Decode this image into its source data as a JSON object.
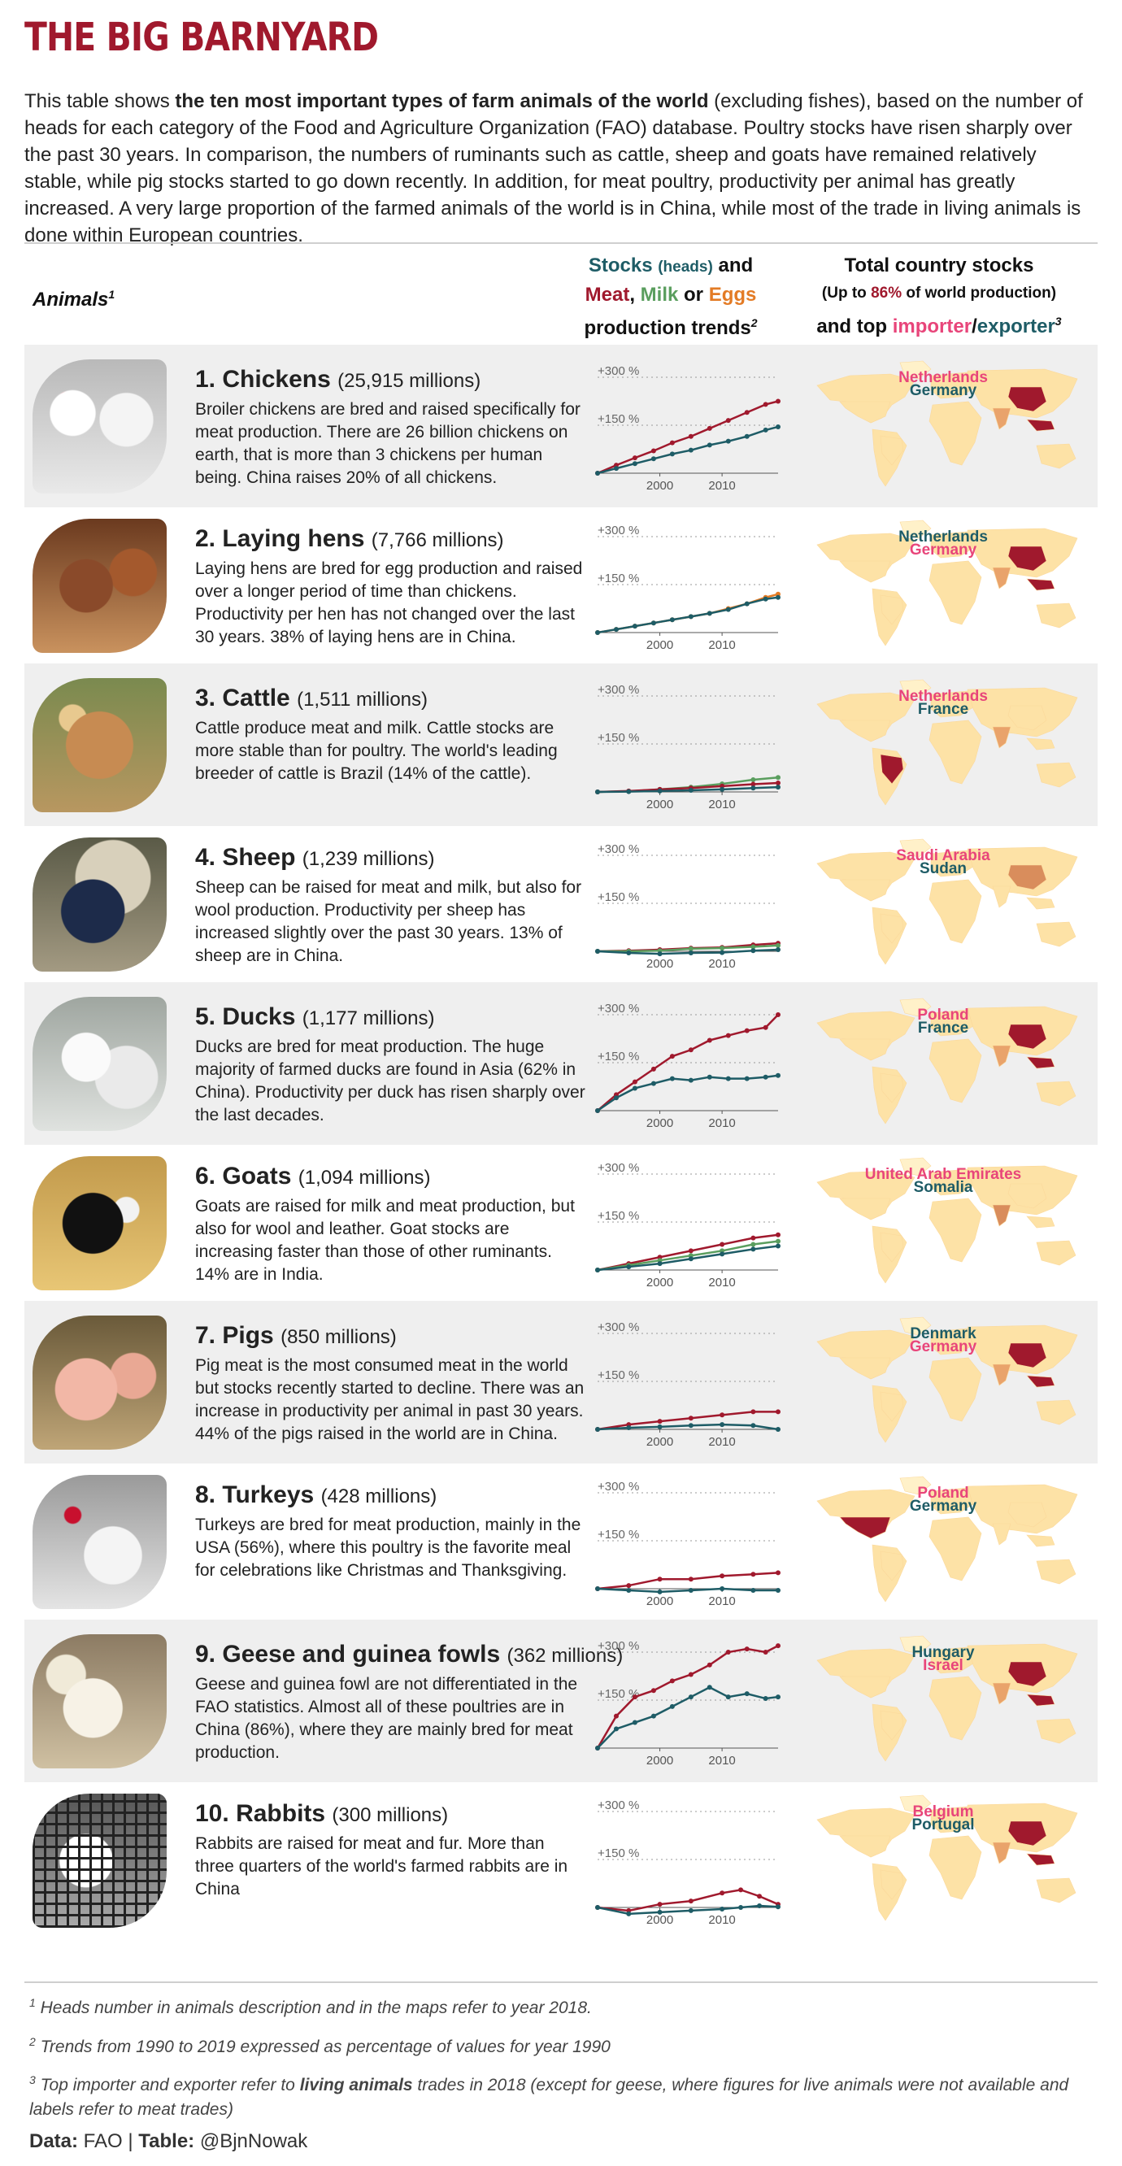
{
  "title": "THE BIG BARNYARD",
  "intro": {
    "p1": "This table shows ",
    "bold": "the ten most important types of farm animals of the world",
    "p2": " (excluding fishes), based on the number of heads for each category of the Food and Agriculture Organization (FAO) database. Poultry stocks have risen sharply over the past 30 years. In comparison, the numbers of ruminants such as cattle, sheep and goats have remained relatively stable, while pig stocks started to go down recently. In addition, for meat poultry, productivity per animal has greatly increased. A very large proportion of the farmed animals of the world is in China, while most of the trade in living animals is done within European countries."
  },
  "headers": {
    "animals": "Animals",
    "animals_sup": "1",
    "trend_stocks": "Stocks",
    "trend_heads": "(heads)",
    "trend_and": "and",
    "trend_meat": "Meat",
    "trend_comma": ",",
    "trend_milk": "Milk",
    "trend_or": "or",
    "trend_eggs": "Eggs",
    "trend_line3": "production trends",
    "trend_sup": "2",
    "map_line1": "Total country stocks",
    "map_line2a": "(Up to ",
    "map_pct": "86%",
    "map_line2b": " of world production)",
    "map_line3a": "and top ",
    "map_importer": "importer",
    "map_slash": "/",
    "map_exporter": "exporter",
    "map_sup": "3"
  },
  "colors": {
    "stocks": "#1e5c66",
    "meat": "#a0192d",
    "milk": "#5a9e5e",
    "eggs": "#e37b25",
    "importer": "#e8457a",
    "exporter": "#1e5c66",
    "map_base": "#fde2a6",
    "map_mid": "#d98d5c",
    "map_high": "#a0192d",
    "title": "#a0192d"
  },
  "axis_labels": {
    "y300": "+300 %",
    "y150": "+150 %",
    "x2000": "2000",
    "x2010": "2010"
  },
  "animals": [
    {
      "rank": "1.",
      "name": "Chickens",
      "count": "(25,915 millions)",
      "desc": "Broiler chickens are bred and raised specifically for meat production. There are 26 billion chickens on earth, that is more than 3 chickens per human being. China raises 20% of all chickens.",
      "importer": "Netherlands",
      "exporter": "Germany",
      "top_region": "china"
    },
    {
      "rank": "2.",
      "name": "Laying hens",
      "count": "(7,766 millions)",
      "desc": "Laying hens are bred for egg production and raised over a longer period of time than chickens. Productivity per hen has not changed over the last 30 years. 38% of laying hens are in China.",
      "importer": "Germany",
      "exporter": "Netherlands",
      "top_region": "china"
    },
    {
      "rank": "3.",
      "name": "Cattle",
      "count": "(1,511 millions)",
      "desc": "Cattle produce meat and milk. Cattle stocks are more stable than for poultry. The world's leading breeder of cattle is Brazil (14% of the cattle).",
      "importer": "Netherlands",
      "exporter": "France",
      "top_region": "brazil"
    },
    {
      "rank": "4.",
      "name": "Sheep",
      "count": "(1,239 millions)",
      "desc": "Sheep can be raised for meat and milk, but also for wool production. Productivity per sheep has increased slightly over the past 30 years. 13% of sheep are in China.",
      "importer": "Saudi Arabia",
      "exporter": "Sudan",
      "top_region": "china-light"
    },
    {
      "rank": "5.",
      "name": "Ducks",
      "count": "(1,177 millions)",
      "desc": "Ducks are bred for meat production. The huge majority of farmed ducks are found in Asia (62% in China). Productivity per duck has risen sharply over the last decades.",
      "importer": "Poland",
      "exporter": "France",
      "top_region": "china"
    },
    {
      "rank": "6.",
      "name": "Goats",
      "count": "(1,094 millions)",
      "desc": "Goats are raised for milk and meat production, but also for wool and leather. Goat stocks are increasing faster than those of other ruminants. 14% are in India.",
      "importer": "United Arab Emirates",
      "exporter": "Somalia",
      "top_region": "india-light"
    },
    {
      "rank": "7.",
      "name": "Pigs",
      "count": "(850 millions)",
      "desc": "Pig meat is the most consumed meat in the world but stocks recently started to decline. There was an increase in productivity per animal in past 30 years. 44% of the pigs raised in the world are in China.",
      "importer": "Germany",
      "exporter": "Denmark",
      "top_region": "china"
    },
    {
      "rank": "8.",
      "name": "Turkeys",
      "count": "(428 millions)",
      "desc": "Turkeys are bred for meat production, mainly in the USA (56%), where this poultry is the favorite meal for celebrations like Christmas and Thanksgiving.",
      "importer": "Poland",
      "exporter": "Germany",
      "top_region": "usa"
    },
    {
      "rank": "9.",
      "name": "Geese and guinea fowls",
      "count": "(362 millions)",
      "desc": "Geese and guinea fowl are not differentiated in the FAO statistics. Almost all of these poultries are in China (86%), where they are mainly bred for meat production.",
      "importer": "Israel",
      "exporter": "Hungary",
      "top_region": "china"
    },
    {
      "rank": "10.",
      "name": "Rabbits",
      "count": "(300 millions)",
      "desc": "Rabbits are raised for meat and fur. More than three quarters of the world's farmed rabbits are in China",
      "importer": "Belgium",
      "exporter": "Portugal",
      "top_region": "china"
    }
  ],
  "chart_data": [
    {
      "type": "line",
      "title": "Chickens",
      "ylim": [
        -20,
        320
      ],
      "series": [
        {
          "name": "Meat",
          "color": "#a0192d",
          "x": [
            1990,
            1993,
            1996,
            1999,
            2002,
            2005,
            2008,
            2011,
            2014,
            2017,
            2019
          ],
          "values": [
            0,
            25,
            48,
            70,
            95,
            115,
            140,
            165,
            190,
            215,
            225
          ]
        },
        {
          "name": "Stocks",
          "color": "#1e5c66",
          "x": [
            1990,
            1993,
            1996,
            1999,
            2002,
            2005,
            2008,
            2011,
            2014,
            2017,
            2019
          ],
          "values": [
            0,
            15,
            30,
            45,
            60,
            72,
            88,
            100,
            115,
            135,
            145
          ]
        }
      ]
    },
    {
      "type": "line",
      "title": "Laying hens",
      "ylim": [
        -20,
        320
      ],
      "series": [
        {
          "name": "Eggs",
          "color": "#e37b25",
          "x": [
            1990,
            1993,
            1996,
            1999,
            2002,
            2005,
            2008,
            2011,
            2014,
            2017,
            2019
          ],
          "values": [
            0,
            10,
            20,
            30,
            40,
            50,
            60,
            75,
            90,
            110,
            120
          ]
        },
        {
          "name": "Stocks",
          "color": "#1e5c66",
          "x": [
            1990,
            1993,
            1996,
            1999,
            2002,
            2005,
            2008,
            2011,
            2014,
            2017,
            2019
          ],
          "values": [
            0,
            10,
            20,
            30,
            40,
            50,
            60,
            72,
            90,
            105,
            110
          ]
        }
      ]
    },
    {
      "type": "line",
      "title": "Cattle",
      "ylim": [
        -20,
        320
      ],
      "series": [
        {
          "name": "Milk",
          "color": "#5a9e5e",
          "x": [
            1990,
            1995,
            2000,
            2005,
            2010,
            2015,
            2019
          ],
          "values": [
            0,
            2,
            8,
            15,
            25,
            38,
            45
          ]
        },
        {
          "name": "Meat",
          "color": "#a0192d",
          "x": [
            1990,
            1995,
            2000,
            2005,
            2010,
            2015,
            2019
          ],
          "values": [
            0,
            3,
            8,
            12,
            18,
            24,
            28
          ]
        },
        {
          "name": "Stocks",
          "color": "#1e5c66",
          "x": [
            1990,
            1995,
            2000,
            2005,
            2010,
            2015,
            2019
          ],
          "values": [
            0,
            1,
            3,
            5,
            8,
            12,
            15
          ]
        }
      ]
    },
    {
      "type": "line",
      "title": "Sheep",
      "ylim": [
        -20,
        320
      ],
      "series": [
        {
          "name": "Meat",
          "color": "#a0192d",
          "x": [
            1990,
            1995,
            2000,
            2005,
            2010,
            2015,
            2019
          ],
          "values": [
            0,
            2,
            5,
            10,
            12,
            20,
            25
          ]
        },
        {
          "name": "Milk",
          "color": "#5a9e5e",
          "x": [
            1990,
            1995,
            2000,
            2005,
            2010,
            2015,
            2019
          ],
          "values": [
            0,
            0,
            2,
            8,
            10,
            14,
            18
          ]
        },
        {
          "name": "Stocks",
          "color": "#1e5c66",
          "x": [
            1990,
            1995,
            2000,
            2005,
            2010,
            2015,
            2019
          ],
          "values": [
            0,
            -5,
            -8,
            -5,
            -4,
            2,
            5
          ]
        }
      ]
    },
    {
      "type": "line",
      "title": "Ducks",
      "ylim": [
        -20,
        320
      ],
      "series": [
        {
          "name": "Meat",
          "color": "#a0192d",
          "x": [
            1990,
            1993,
            1996,
            1999,
            2002,
            2005,
            2008,
            2011,
            2014,
            2017,
            2019
          ],
          "values": [
            0,
            50,
            90,
            130,
            170,
            190,
            220,
            235,
            250,
            260,
            300
          ]
        },
        {
          "name": "Stocks",
          "color": "#1e5c66",
          "x": [
            1990,
            1993,
            1996,
            1999,
            2002,
            2005,
            2008,
            2011,
            2014,
            2017,
            2019
          ],
          "values": [
            0,
            40,
            70,
            85,
            100,
            95,
            105,
            100,
            100,
            105,
            110
          ]
        }
      ]
    },
    {
      "type": "line",
      "title": "Goats",
      "ylim": [
        -20,
        320
      ],
      "series": [
        {
          "name": "Meat",
          "color": "#a0192d",
          "x": [
            1990,
            1995,
            2000,
            2005,
            2010,
            2015,
            2019
          ],
          "values": [
            0,
            20,
            40,
            60,
            80,
            100,
            110
          ]
        },
        {
          "name": "Milk",
          "color": "#5a9e5e",
          "x": [
            1990,
            1995,
            2000,
            2005,
            2010,
            2015,
            2019
          ],
          "values": [
            0,
            15,
            30,
            45,
            60,
            80,
            90
          ]
        },
        {
          "name": "Stocks",
          "color": "#1e5c66",
          "x": [
            1990,
            1995,
            2000,
            2005,
            2010,
            2015,
            2019
          ],
          "values": [
            0,
            10,
            20,
            35,
            50,
            65,
            75
          ]
        }
      ]
    },
    {
      "type": "line",
      "title": "Pigs",
      "ylim": [
        -20,
        320
      ],
      "series": [
        {
          "name": "Meat",
          "color": "#a0192d",
          "x": [
            1990,
            1995,
            2000,
            2005,
            2010,
            2015,
            2019
          ],
          "values": [
            0,
            15,
            25,
            35,
            45,
            55,
            55
          ]
        },
        {
          "name": "Stocks",
          "color": "#1e5c66",
          "x": [
            1990,
            1995,
            2000,
            2005,
            2010,
            2015,
            2019
          ],
          "values": [
            0,
            5,
            8,
            12,
            15,
            12,
            0
          ]
        }
      ]
    },
    {
      "type": "line",
      "title": "Turkeys",
      "ylim": [
        -20,
        320
      ],
      "series": [
        {
          "name": "Meat",
          "color": "#a0192d",
          "x": [
            1990,
            1995,
            2000,
            2005,
            2010,
            2015,
            2019
          ],
          "values": [
            0,
            10,
            30,
            30,
            40,
            45,
            50
          ]
        },
        {
          "name": "Stocks",
          "color": "#1e5c66",
          "x": [
            1990,
            1995,
            2000,
            2005,
            2010,
            2015,
            2019
          ],
          "values": [
            0,
            -5,
            -10,
            -5,
            0,
            -5,
            -5
          ]
        }
      ]
    },
    {
      "type": "line",
      "title": "Geese and guinea fowls",
      "ylim": [
        -20,
        320
      ],
      "series": [
        {
          "name": "Meat",
          "color": "#a0192d",
          "x": [
            1990,
            1993,
            1996,
            1999,
            2002,
            2005,
            2008,
            2011,
            2014,
            2017,
            2019
          ],
          "values": [
            0,
            100,
            160,
            180,
            210,
            230,
            260,
            300,
            310,
            300,
            320
          ]
        },
        {
          "name": "Stocks",
          "color": "#1e5c66",
          "x": [
            1990,
            1993,
            1996,
            1999,
            2002,
            2005,
            2008,
            2011,
            2014,
            2017,
            2019
          ],
          "values": [
            0,
            60,
            80,
            100,
            130,
            160,
            190,
            160,
            170,
            155,
            160
          ]
        }
      ]
    },
    {
      "type": "line",
      "title": "Rabbits",
      "ylim": [
        -20,
        320
      ],
      "series": [
        {
          "name": "Meat",
          "color": "#a0192d",
          "x": [
            1990,
            1995,
            2000,
            2005,
            2010,
            2013,
            2016,
            2019
          ],
          "values": [
            0,
            -10,
            10,
            20,
            45,
            55,
            35,
            10
          ]
        },
        {
          "name": "Stocks",
          "color": "#1e5c66",
          "x": [
            1990,
            1995,
            2000,
            2005,
            2010,
            2013,
            2016,
            2019
          ],
          "values": [
            0,
            -20,
            -15,
            -10,
            -5,
            0,
            5,
            2
          ]
        }
      ]
    }
  ],
  "footnotes": {
    "n1_sup": "1",
    "n1": "Heads number in animals description and in the maps refer to year 2018.",
    "n2_sup": "2",
    "n2": "Trends from 1990 to 2019 expressed as percentage of values for year 1990",
    "n3_sup": "3",
    "n3a": "Top importer and exporter refer to ",
    "n3b": "living animals",
    "n3c": " trades in 2018 (except for geese, where figures for live animals were not available and labels refer to meat trades)"
  },
  "credit": {
    "data_label": "Data:",
    "data_value": " FAO | ",
    "table_label": "Table:",
    "table_value": " @BjnNowak"
  }
}
